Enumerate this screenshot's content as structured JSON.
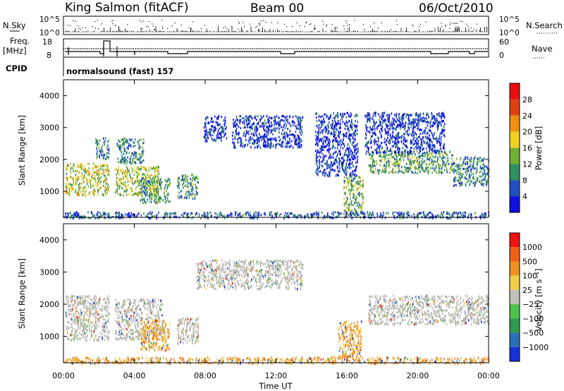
{
  "header": {
    "site": "King Salmon (fitACF)",
    "beam": "Beam 00",
    "date": "06/Oct/2010"
  },
  "status_panel": {
    "nsky_label": "N.Sky",
    "nsky_ticks": [
      "10^5",
      "10^0"
    ],
    "nsearch_label": "N.Search",
    "nsearch_ticks": [
      "10^5",
      "10^0"
    ],
    "freq_label": "Freq.",
    "freq_unit": "[MHz]",
    "freq_ticks": [
      "18",
      "8"
    ],
    "nave_label": "Nave",
    "nave_ticks": [
      "60",
      "0"
    ],
    "cpid_label": "CPID",
    "cpid_value": "normalsound (fast) 157"
  },
  "time_axis": {
    "label": "Time UT",
    "ticks": [
      "00:00",
      "04:00",
      "08:00",
      "12:00",
      "16:00",
      "20:00",
      "00:00"
    ]
  },
  "chart_data": [
    {
      "type": "heatmap",
      "ylabel": "Slant Range [km]",
      "yticks": [
        "1000",
        "2000",
        "3000",
        "4000"
      ],
      "ylim": [
        180,
        4500
      ],
      "xlim_hours": [
        0,
        24
      ],
      "colorbar_label": "Power [dB]",
      "colorbar_ticks": [
        "4",
        "8",
        "12",
        "16",
        "20",
        "24",
        "28"
      ],
      "colorbar_colors": [
        "#1010e0",
        "#2050c0",
        "#2f9060",
        "#70b030",
        "#f0d020",
        "#f09010",
        "#e04010",
        "#e81010"
      ],
      "echo_regions": [
        {
          "t0": 0.1,
          "t1": 2.6,
          "r0": 900,
          "r1": 1900,
          "level": 0.55
        },
        {
          "t0": 1.8,
          "t1": 2.6,
          "r0": 2050,
          "r1": 2700,
          "level": 0.3
        },
        {
          "t0": 2.9,
          "t1": 5.4,
          "r0": 900,
          "r1": 1800,
          "level": 0.5
        },
        {
          "t0": 3.0,
          "t1": 4.5,
          "r0": 1900,
          "r1": 2700,
          "level": 0.3
        },
        {
          "t0": 4.3,
          "t1": 6.0,
          "r0": 650,
          "r1": 1450,
          "level": 0.35
        },
        {
          "t0": 6.4,
          "t1": 7.6,
          "r0": 800,
          "r1": 1550,
          "level": 0.35
        },
        {
          "t0": 7.9,
          "t1": 9.2,
          "r0": 2600,
          "r1": 3400,
          "level": 0.1
        },
        {
          "t0": 9.5,
          "t1": 13.5,
          "r0": 2400,
          "r1": 3400,
          "level": 0.1
        },
        {
          "t0": 14.2,
          "t1": 16.6,
          "r0": 1500,
          "r1": 3500,
          "level": 0.1
        },
        {
          "t0": 15.8,
          "t1": 16.9,
          "r0": 300,
          "r1": 1500,
          "level": 0.45
        },
        {
          "t0": 17.2,
          "t1": 22.0,
          "r0": 1600,
          "r1": 2300,
          "level": 0.4
        },
        {
          "t0": 22.0,
          "t1": 24.0,
          "r0": 1200,
          "r1": 2100,
          "level": 0.3
        },
        {
          "t0": 17.0,
          "t1": 21.5,
          "r0": 2200,
          "r1": 3500,
          "level": 0.1
        },
        {
          "t0": 0.0,
          "t1": 24.0,
          "r0": 180,
          "r1": 380,
          "level": 0.2
        }
      ]
    },
    {
      "type": "heatmap",
      "ylabel": "Slant Range [km]",
      "yticks": [
        "1000",
        "2000",
        "3000",
        "4000"
      ],
      "ylim": [
        180,
        4500
      ],
      "xlim_hours": [
        0,
        24
      ],
      "colorbar_label": "Velocity [m s⁻¹]",
      "colorbar_ticks": [
        "1000",
        "500",
        "100",
        "25",
        "−25",
        "−100",
        "−500",
        "−1000"
      ],
      "colorbar_colors": [
        "#1830d8",
        "#2a70b8",
        "#2e9a4e",
        "#4cc24a",
        "#c0c0b8",
        "#f0d048",
        "#f09020",
        "#f06018",
        "#f01010"
      ],
      "ground_scatter_color": "#b8b8b0",
      "echo_regions": [
        {
          "t0": 0.1,
          "t1": 2.6,
          "r0": 900,
          "r1": 2300,
          "level": 0.5
        },
        {
          "t0": 2.9,
          "t1": 5.6,
          "r0": 900,
          "r1": 2200,
          "level": 0.5
        },
        {
          "t0": 4.3,
          "t1": 6.0,
          "r0": 600,
          "r1": 1550,
          "level": 0.65
        },
        {
          "t0": 6.4,
          "t1": 7.6,
          "r0": 800,
          "r1": 1600,
          "level": 0.5
        },
        {
          "t0": 7.5,
          "t1": 13.5,
          "r0": 2500,
          "r1": 3400,
          "level": 0.5
        },
        {
          "t0": 15.5,
          "t1": 16.8,
          "r0": 350,
          "r1": 1500,
          "level": 0.7
        },
        {
          "t0": 17.2,
          "t1": 24.0,
          "r0": 1400,
          "r1": 2300,
          "level": 0.5
        },
        {
          "t0": 0.0,
          "t1": 24.0,
          "r0": 180,
          "r1": 380,
          "level": 0.65
        }
      ]
    }
  ]
}
